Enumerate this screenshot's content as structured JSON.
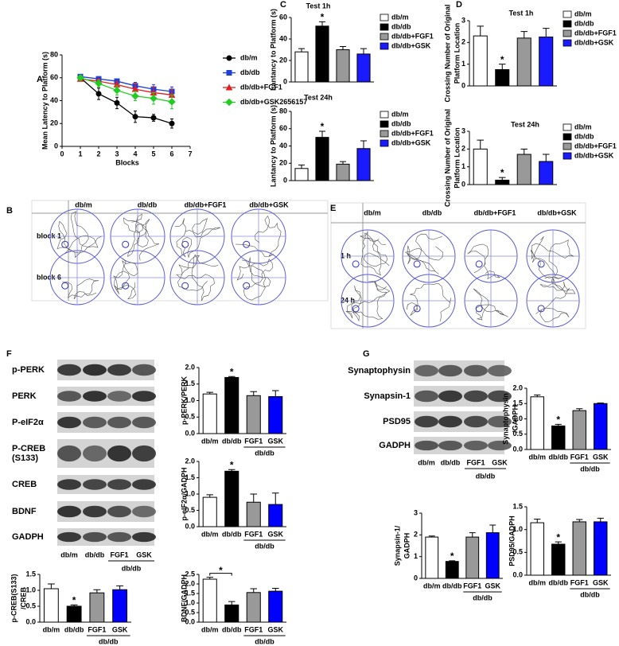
{
  "panels": [
    "A",
    "B",
    "C",
    "D",
    "E",
    "F",
    "G"
  ],
  "maze_B": {
    "columns": [
      "db/m",
      "db/db",
      "db/db+FGF1",
      "db/db+GSK"
    ],
    "rows": [
      "block 1",
      "block 6"
    ]
  },
  "maze_E": {
    "columns": [
      "db/m",
      "db/db",
      "db/db+FGF1",
      "db/db+GSK"
    ],
    "rows": [
      "1 h",
      "24 h"
    ]
  },
  "blot_F": {
    "rows": [
      "p-PERK",
      "PERK",
      "P-eIF2α",
      [
        "P-CREB",
        "(S133)"
      ],
      "CREB",
      "BDNF",
      "GADPH"
    ],
    "lanes": [
      "db/m",
      "db/db",
      "FGF1",
      "GSK"
    ],
    "group": "db/db"
  },
  "blot_G": {
    "rows": [
      "Synaptophysin",
      "Synapsin-1",
      "PSD95",
      "GADPH"
    ],
    "lanes": [
      "db/m",
      "db/db",
      "FGF1",
      "GSK"
    ],
    "group": "db/db"
  },
  "chart_data": [
    {
      "type": "line",
      "ylabel": [
        "Mean Latency to Platform (s)"
      ],
      "xlabel": "Blocks",
      "x": [
        1,
        2,
        3,
        4,
        5,
        6
      ],
      "xlim": [
        0,
        7
      ],
      "xticks": [
        0,
        1,
        2,
        3,
        4,
        5,
        6,
        7
      ],
      "ylim": [
        0,
        80
      ],
      "yticks": [
        0,
        20,
        40,
        60,
        80
      ],
      "legend": "right",
      "series": [
        {
          "name": "db/m",
          "color": "#000000",
          "marker": "circle",
          "values": [
            60,
            46,
            38,
            26,
            25,
            20
          ],
          "errors": [
            2,
            5,
            5,
            5,
            3,
            4
          ]
        },
        {
          "name": "db/db",
          "color": "#1f3fd6",
          "marker": "square",
          "values": [
            61,
            59,
            57,
            53,
            50,
            48
          ],
          "errors": [
            2,
            2,
            2,
            3,
            4,
            4
          ]
        },
        {
          "name": "db/db+FGF1",
          "color": "#e02020",
          "marker": "triangle",
          "values": [
            59,
            57,
            54,
            50,
            47,
            45
          ],
          "errors": [
            2,
            2,
            3,
            5,
            5,
            5
          ]
        },
        {
          "name": "db/db+GSK2656157",
          "color": "#22cc22",
          "marker": "diamond",
          "values": [
            60,
            55,
            49,
            44,
            42,
            39
          ],
          "errors": [
            2,
            3,
            4,
            4,
            5,
            6
          ]
        }
      ]
    },
    {
      "type": "bar",
      "title": "Test 1h",
      "ylabel": [
        "Lantancy to Platform (s)"
      ],
      "categories": [
        "db/m",
        "db/db",
        "db/db+FGF1",
        "db/db+GSK"
      ],
      "colors": [
        "#ffffff",
        "#000000",
        "#999999",
        "#1a1aff"
      ],
      "values": [
        28,
        52,
        30,
        26
      ],
      "errors": [
        3,
        4,
        3,
        5
      ],
      "ylim": [
        0,
        60
      ],
      "yticks": [
        0,
        20,
        40,
        60
      ],
      "legend": "right",
      "annotation": "*"
    },
    {
      "type": "bar",
      "title": "Test 24h",
      "ylabel": [
        "Lantancy to Platform (s)"
      ],
      "categories": [
        "db/m",
        "db/db",
        "db/db+FGF1",
        "db/db+GSK"
      ],
      "colors": [
        "#ffffff",
        "#000000",
        "#999999",
        "#1a1aff"
      ],
      "values": [
        14,
        50,
        19,
        37
      ],
      "errors": [
        4,
        7,
        3,
        9
      ],
      "ylim": [
        0,
        80
      ],
      "yticks": [
        0,
        20,
        40,
        60,
        80
      ],
      "legend": "right",
      "annotation": "*"
    },
    {
      "type": "bar",
      "title": "Test 1h",
      "ylabel": [
        "Crossing Number of Original",
        "Platform Location"
      ],
      "categories": [
        "db/m",
        "db/db",
        "db/db+FGF1",
        "db/db+GSK"
      ],
      "colors": [
        "#ffffff",
        "#000000",
        "#999999",
        "#1a1aff"
      ],
      "values": [
        2.3,
        0.75,
        2.2,
        2.25
      ],
      "errors": [
        0.45,
        0.25,
        0.3,
        0.4
      ],
      "ylim": [
        0,
        3
      ],
      "yticks": [
        0,
        1,
        2,
        3
      ],
      "legend": "right",
      "annotation": "*"
    },
    {
      "type": "bar",
      "title": "Test 24h",
      "ylabel": [
        "Crossing Number of Original",
        "Platform Location"
      ],
      "categories": [
        "db/m",
        "db/db",
        "db/db+FGF1",
        "db/db+GSK"
      ],
      "colors": [
        "#ffffff",
        "#000000",
        "#999999",
        "#1a1aff"
      ],
      "values": [
        2.0,
        0.25,
        1.7,
        1.3
      ],
      "errors": [
        0.5,
        0.15,
        0.3,
        0.4
      ],
      "ylim": [
        0,
        3
      ],
      "yticks": [
        0,
        1,
        2,
        3
      ],
      "legend": "right",
      "annotation": "*"
    },
    {
      "type": "bar",
      "ylabel": [
        "p-PERK/PERK"
      ],
      "categories": [
        "db/m",
        "db/db",
        "FGF1",
        "GSK"
      ],
      "group_label": "db/db",
      "colors": [
        "#ffffff",
        "#000000",
        "#999999",
        "#0000ff"
      ],
      "values": [
        1.2,
        1.7,
        1.15,
        1.12
      ],
      "errors": [
        0.05,
        0.03,
        0.12,
        0.18
      ],
      "ylim": [
        0,
        2
      ],
      "yticks": [
        {
          "value": 0,
          "label": "0.0"
        },
        0.5,
        {
          "value": 1,
          "label": "1.0"
        },
        1.5,
        {
          "value": 2,
          "label": "2.0"
        }
      ],
      "annotation": "*"
    },
    {
      "type": "bar",
      "ylabel": [
        "p-eIF2α/GADPH"
      ],
      "categories": [
        "db/m",
        "db/db",
        "FGF1",
        "GSK"
      ],
      "group_label": "db/db",
      "colors": [
        "#ffffff",
        "#000000",
        "#999999",
        "#0000ff"
      ],
      "values": [
        0.9,
        1.7,
        0.75,
        0.68
      ],
      "errors": [
        0.08,
        0.05,
        0.25,
        0.35
      ],
      "ylim": [
        0,
        2
      ],
      "yticks": [
        {
          "value": 0,
          "label": "0.0"
        },
        0.5,
        {
          "value": 1,
          "label": "1.0"
        },
        1.5,
        {
          "value": 2,
          "label": "2.0"
        }
      ],
      "annotation": "*"
    },
    {
      "type": "bar",
      "ylabel": [
        "p-CREB(S133)",
        "/CREB"
      ],
      "categories": [
        "db/m",
        "db/db",
        "FGF1",
        "GSK"
      ],
      "group_label": "db/db",
      "colors": [
        "#ffffff",
        "#000000",
        "#999999",
        "#0000ff"
      ],
      "values": [
        1.05,
        0.5,
        0.92,
        1.02
      ],
      "errors": [
        0.15,
        0.04,
        0.1,
        0.12
      ],
      "ylim": [
        0,
        1.5
      ],
      "yticks": [
        {
          "value": 0,
          "label": "0.0"
        },
        0.5,
        {
          "value": 1,
          "label": "1.0"
        },
        1.5
      ],
      "annotation": "*"
    },
    {
      "type": "bar",
      "ylabel": [
        "BDNF/GADPH"
      ],
      "categories": [
        "db/m",
        "db/db",
        "FGF1",
        "GSK"
      ],
      "group_label": "db/db",
      "colors": [
        "#ffffff",
        "#000000",
        "#999999",
        "#0000ff"
      ],
      "values": [
        2.25,
        0.9,
        1.55,
        1.62
      ],
      "errors": [
        0.1,
        0.18,
        0.2,
        0.15
      ],
      "ylim": [
        0,
        2.5
      ],
      "yticks": [
        {
          "value": 0,
          "label": "0.0"
        },
        0.5,
        {
          "value": 1,
          "label": "1.0"
        },
        1.5,
        {
          "value": 2,
          "label": "2.0"
        },
        2.5
      ],
      "annotation": "*",
      "bracket": true
    },
    {
      "type": "bar",
      "ylabel": [
        "Synaptophysin",
        "/GADPH"
      ],
      "categories": [
        "db/m",
        "db/db",
        "FGF1",
        "GSK"
      ],
      "group_label": "db/db",
      "colors": [
        "#ffffff",
        "#000000",
        "#999999",
        "#0000ff"
      ],
      "values": [
        1.72,
        0.77,
        1.27,
        1.5
      ],
      "errors": [
        0.06,
        0.05,
        0.06,
        0.02
      ],
      "ylim": [
        0,
        2
      ],
      "yticks": [
        {
          "value": 0,
          "label": "0.0"
        },
        0.5,
        {
          "value": 1,
          "label": "1.0"
        },
        1.5,
        {
          "value": 2,
          "label": "2.0"
        }
      ],
      "annotation": "*"
    },
    {
      "type": "bar",
      "ylabel": [
        "Synapsin-1/",
        "GADPH"
      ],
      "categories": [
        "db/m",
        "db/db",
        "FGF1",
        "GSK"
      ],
      "group_label": "db/db",
      "colors": [
        "#ffffff",
        "#000000",
        "#999999",
        "#0000ff"
      ],
      "values": [
        1.9,
        0.78,
        1.9,
        2.1
      ],
      "errors": [
        0.05,
        0.03,
        0.2,
        0.35
      ],
      "ylim": [
        0,
        3
      ],
      "yticks": [
        0,
        1,
        2,
        3
      ],
      "annotation": "*"
    },
    {
      "type": "bar",
      "ylabel": [
        "PSD95/GADPH"
      ],
      "categories": [
        "db/m",
        "db/db",
        "FGF1",
        "GSK"
      ],
      "group_label": "db/db",
      "colors": [
        "#ffffff",
        "#000000",
        "#999999",
        "#0000ff"
      ],
      "values": [
        1.15,
        0.68,
        1.17,
        1.17
      ],
      "errors": [
        0.08,
        0.05,
        0.05,
        0.08
      ],
      "ylim": [
        0,
        1.5
      ],
      "yticks": [
        {
          "value": 0,
          "label": "0.0"
        },
        0.5,
        {
          "value": 1,
          "label": "1.0"
        },
        1.5
      ],
      "annotation": "*"
    }
  ]
}
